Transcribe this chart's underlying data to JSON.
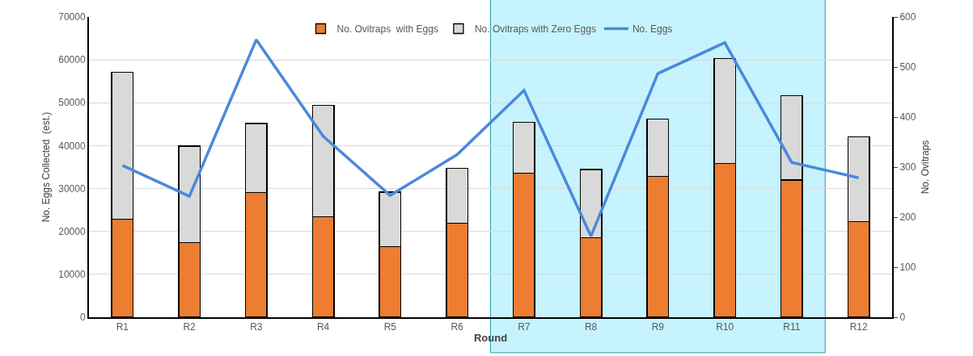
{
  "chart_data": {
    "type": "bar",
    "stacked": true,
    "xlabel": "Round",
    "ylabel": "No. Eggs Collected  (est.)",
    "y2label": "No. Ovitraps",
    "categories": [
      "R1",
      "R2",
      "R3",
      "R4",
      "R5",
      "R6",
      "R7",
      "R8",
      "R9",
      "R10",
      "R11",
      "R12"
    ],
    "series": [
      {
        "name": "No. Ovitraps  with Eggs",
        "color": "#ed7d31",
        "axis": "y2",
        "values": [
          196,
          149,
          249,
          201,
          141,
          188,
          288,
          159,
          282,
          307,
          274,
          191
        ]
      },
      {
        "name": "No. Ovitraps with Zero Eggs",
        "color": "#d9d9d9",
        "axis": "y2",
        "values": [
          294,
          193,
          138,
          222,
          109,
          110,
          102,
          136,
          114,
          210,
          169,
          169
        ]
      },
      {
        "name": "No. Eggs",
        "type": "line",
        "color": "#4a89dc",
        "axis": "y",
        "values": [
          35400,
          28200,
          64700,
          42200,
          28400,
          37900,
          52900,
          18900,
          56800,
          64000,
          36100,
          32500
        ]
      }
    ],
    "ylim": [
      0,
      70000
    ],
    "yticks": [
      0,
      10000,
      20000,
      30000,
      40000,
      50000,
      60000,
      70000
    ],
    "y2lim": [
      0,
      600
    ],
    "y2ticks": [
      0,
      100,
      200,
      300,
      400,
      500,
      600
    ],
    "grid": "y",
    "legend": "top",
    "marker": "none",
    "line_style": "solid",
    "bands": [
      {
        "axis": "x",
        "from": "R7",
        "to": "R11",
        "color": "#c6f3fd"
      }
    ]
  }
}
